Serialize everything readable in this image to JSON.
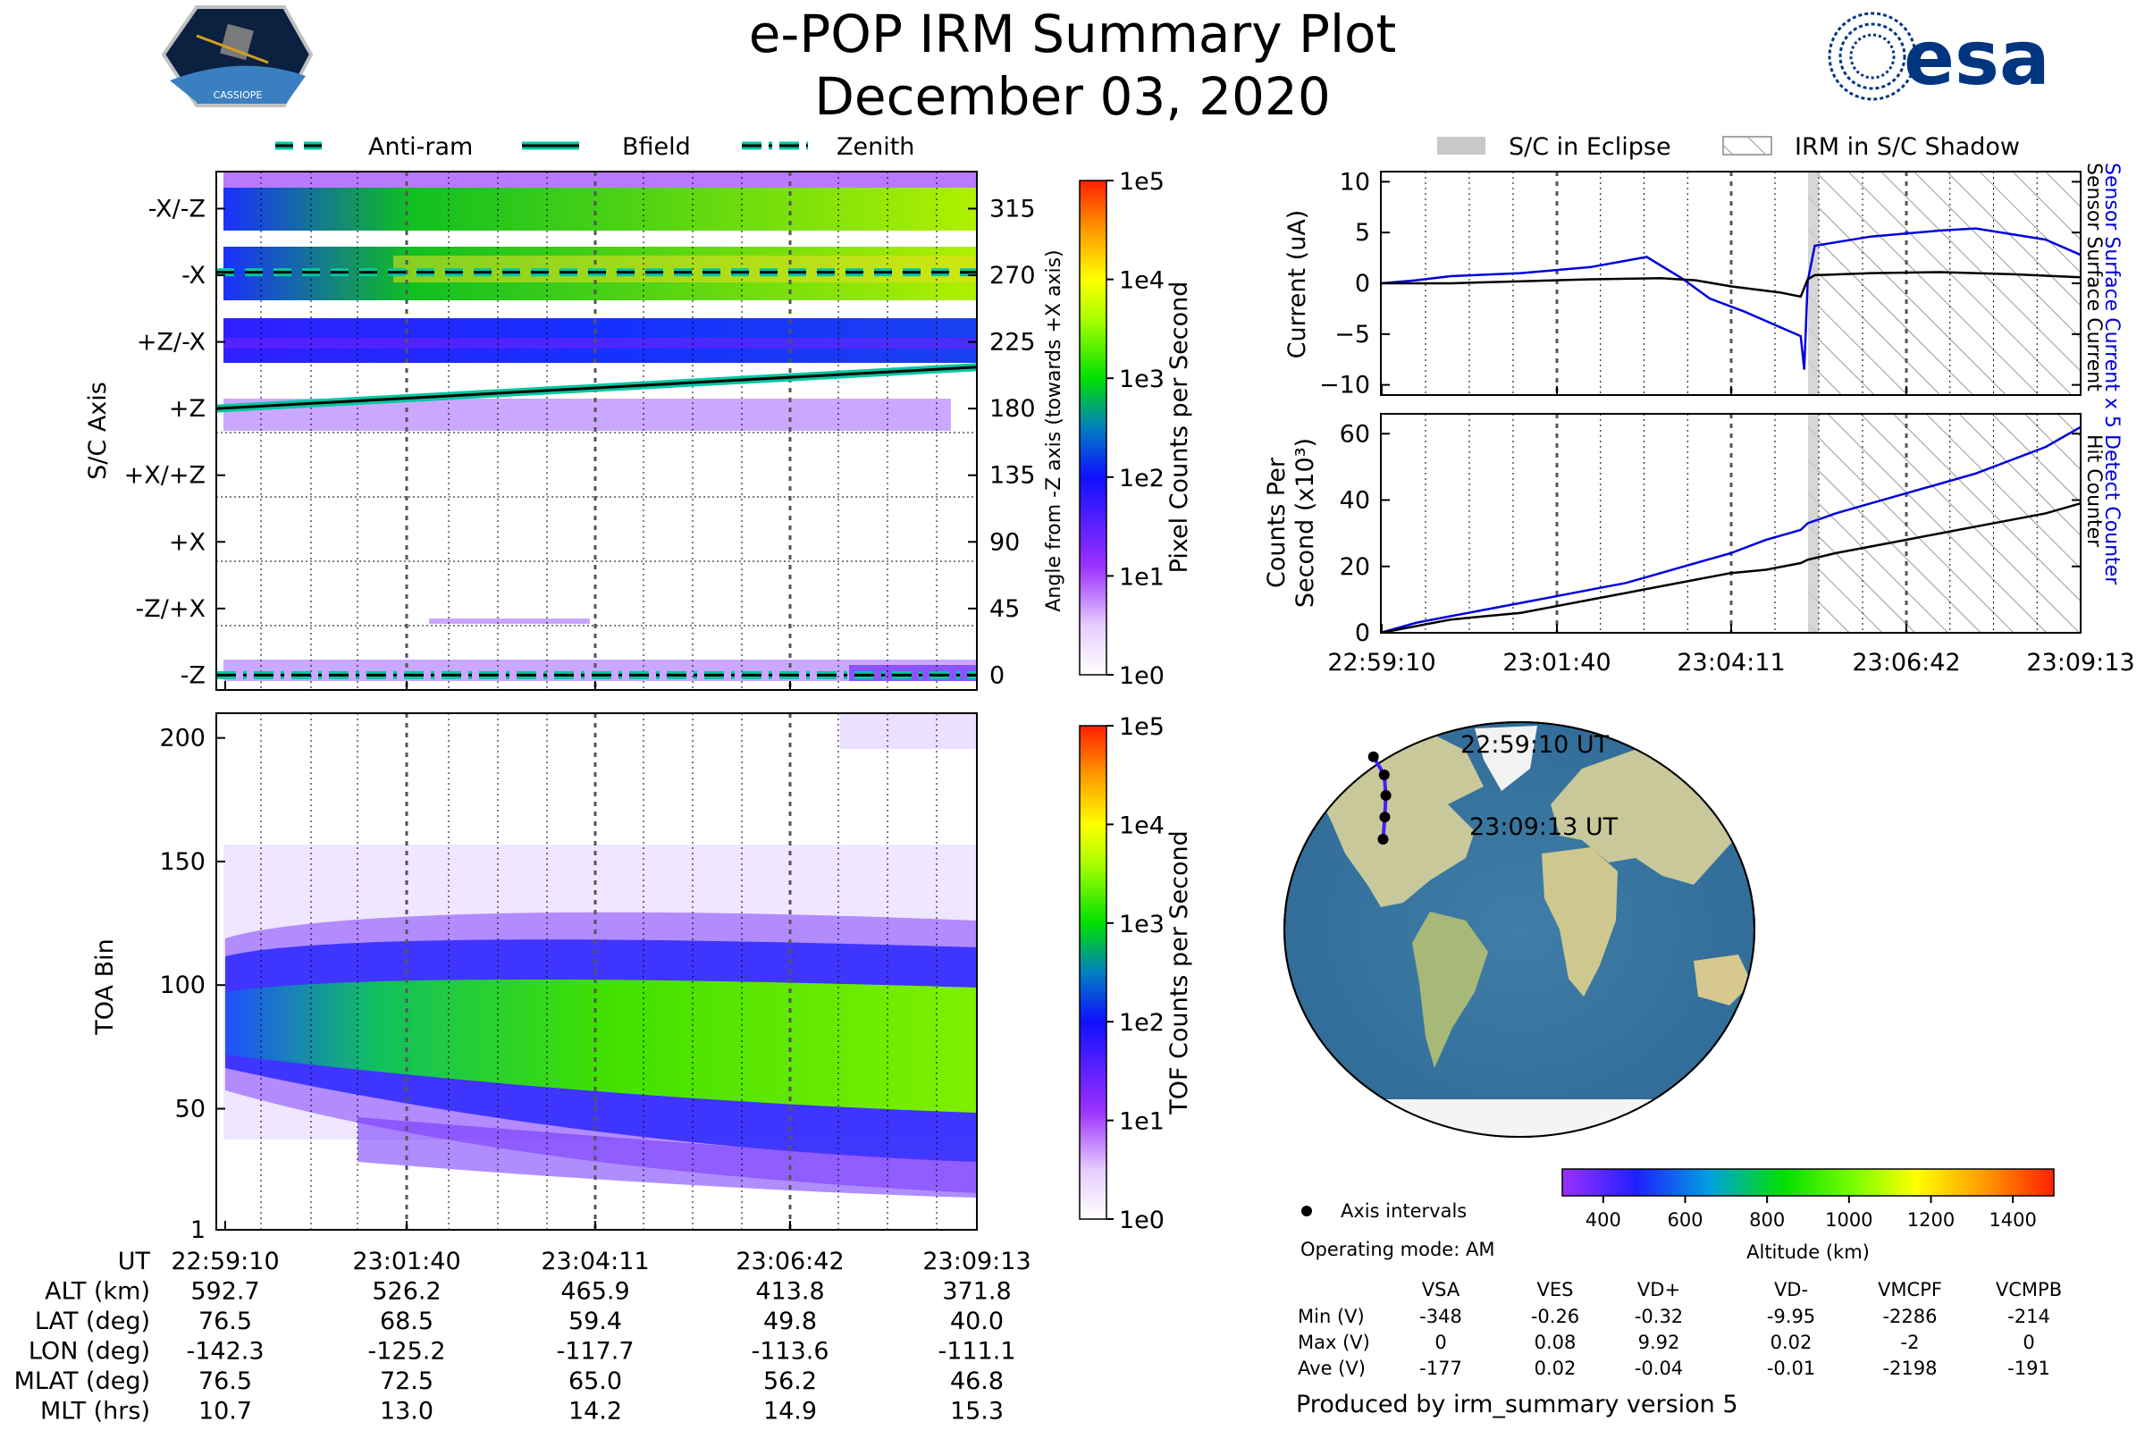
{
  "header": {
    "title": "e-POP IRM Summary Plot",
    "date": "December 03, 2020",
    "left_logo": {
      "icon": "cassiope-mission-patch-icon",
      "text": "CASSIOPE"
    },
    "right_logo": {
      "icon": "esa-logo-icon",
      "text": "esa",
      "color": "#003580"
    }
  },
  "legend_top_left": [
    {
      "label": "Anti-ram",
      "style": "dashed"
    },
    {
      "label": "Bfield",
      "style": "solid"
    },
    {
      "label": "Zenith",
      "style": "dashdot"
    }
  ],
  "legend_top_right": [
    {
      "label": "S/C in Eclipse",
      "style": "gray-fill"
    },
    {
      "label": "IRM in S/C Shadow",
      "style": "hatch"
    }
  ],
  "time_ticks": [
    "22:59:10",
    "23:01:40",
    "23:04:11",
    "23:06:42",
    "23:09:13"
  ],
  "chart_data": [
    {
      "id": "sc-axis-spectrogram",
      "type": "heatmap",
      "ylabel": "S/C Axis",
      "y2label": "Angle from -Z axis (towards +X axis)",
      "ytick_labels": [
        "-X/-Z",
        "-X",
        "+Z/-X",
        "+Z",
        "+X/+Z",
        "+X",
        "-Z/+X",
        "-Z"
      ],
      "angle_ticks": [
        315,
        270,
        225,
        180,
        135,
        90,
        45,
        0
      ],
      "ylim": [
        -10,
        340
      ],
      "colorbar": {
        "label": "Pixel Counts per Second",
        "ticks": [
          "1e0",
          "1e1",
          "1e2",
          "1e3",
          "1e4",
          "1e5"
        ]
      },
      "lines": [
        {
          "name": "Anti-ram",
          "angle_start": 272,
          "angle_end": 272
        },
        {
          "name": "Bfield",
          "angle_start": 180,
          "angle_end": 208
        },
        {
          "name": "Zenith",
          "angle_start": 0,
          "angle_end": 0
        }
      ]
    },
    {
      "id": "toa-spectrogram",
      "type": "heatmap",
      "ylabel": "TOA Bin",
      "ytick_labels": [
        "1",
        "50",
        "100",
        "150",
        "200"
      ],
      "ylim": [
        1,
        210
      ],
      "colorbar": {
        "label": "TOF Counts per Second",
        "ticks": [
          "1e0",
          "1e1",
          "1e2",
          "1e3",
          "1e4",
          "1e5"
        ]
      }
    },
    {
      "id": "current-plot",
      "type": "line",
      "ylabel": "Current (uA)",
      "ytick_labels": [
        "10",
        "5",
        "0",
        "−5",
        "−10"
      ],
      "ylim": [
        -11,
        11
      ],
      "series": [
        {
          "name": "Sensor Surface Current x 5",
          "color": "#0000dd",
          "x": [
            0,
            0.05,
            0.1,
            0.2,
            0.3,
            0.38,
            0.43,
            0.47,
            0.52,
            0.57,
            0.6,
            0.605,
            0.61,
            0.62,
            0.7,
            0.8,
            0.85,
            0.95,
            1.0
          ],
          "y": [
            0.0,
            0.3,
            0.7,
            1.0,
            1.6,
            2.6,
            0.5,
            -1.5,
            -2.8,
            -4.3,
            -5.2,
            -8.5,
            0.2,
            3.7,
            4.6,
            5.2,
            5.4,
            4.3,
            2.8
          ]
        },
        {
          "name": "Sensor Surface Current",
          "color": "#000000",
          "x": [
            0,
            0.1,
            0.2,
            0.3,
            0.4,
            0.45,
            0.5,
            0.57,
            0.6,
            0.61,
            0.62,
            0.7,
            0.8,
            0.9,
            1.0
          ],
          "y": [
            0.0,
            0.0,
            0.2,
            0.4,
            0.5,
            0.3,
            -0.3,
            -0.9,
            -1.3,
            0.4,
            0.8,
            1.0,
            1.1,
            0.9,
            0.6
          ]
        }
      ],
      "right_labels": [
        {
          "text": "Sensor Surface Current x 5",
          "color": "#0000dd"
        },
        {
          "text": "Sensor Surface Current",
          "color": "#000000"
        }
      ]
    },
    {
      "id": "counts-plot",
      "type": "line",
      "ylabel_line1": "Counts Per",
      "ylabel_line2": "Second (x10³)",
      "ytick_labels": [
        "60",
        "40",
        "20",
        "0"
      ],
      "ylim": [
        0,
        66
      ],
      "series": [
        {
          "name": "Detect Counter",
          "color": "#0000dd",
          "x": [
            0,
            0.05,
            0.1,
            0.15,
            0.2,
            0.25,
            0.3,
            0.35,
            0.4,
            0.45,
            0.5,
            0.55,
            0.6,
            0.61,
            0.65,
            0.7,
            0.75,
            0.8,
            0.85,
            0.9,
            0.95,
            1.0
          ],
          "y": [
            0,
            3,
            5,
            7,
            9,
            11,
            13,
            15,
            18,
            21,
            24,
            28,
            31,
            33,
            36,
            39,
            42,
            45,
            48,
            52,
            56,
            62
          ]
        },
        {
          "name": "Hit Counter",
          "color": "#000000",
          "x": [
            0,
            0.05,
            0.1,
            0.15,
            0.2,
            0.25,
            0.3,
            0.35,
            0.4,
            0.45,
            0.5,
            0.55,
            0.6,
            0.61,
            0.65,
            0.7,
            0.75,
            0.8,
            0.85,
            0.9,
            0.95,
            1.0
          ],
          "y": [
            0,
            2,
            4,
            5,
            6,
            8,
            10,
            12,
            14,
            16,
            18,
            19,
            21,
            22,
            24,
            26,
            28,
            30,
            32,
            34,
            36,
            39
          ]
        }
      ],
      "right_labels": [
        {
          "text": "Detect Counter",
          "color": "#0000dd"
        },
        {
          "text": "Hit Counter",
          "color": "#000000"
        }
      ]
    }
  ],
  "map": {
    "start_label": "22:59:10 UT",
    "end_label": "23:09:13 UT",
    "track": [
      {
        "lon": -142.3,
        "lat": 76.5
      },
      {
        "lon": -125.2,
        "lat": 68.5
      },
      {
        "lon": -117.7,
        "lat": 59.4
      },
      {
        "lon": -113.6,
        "lat": 49.8
      },
      {
        "lon": -111.1,
        "lat": 40.0
      }
    ],
    "legend_label": "Axis intervals",
    "altitude_colorbar": {
      "ticks": [
        "400",
        "600",
        "800",
        "1000",
        "1200",
        "1400"
      ],
      "label": "Altitude (km)"
    }
  },
  "operating_mode": "Operating mode: AM",
  "voltage_table": {
    "columns": [
      "VSA",
      "VES",
      "VD+",
      "VD-",
      "VMCPF",
      "VCMPB"
    ],
    "rows": [
      {
        "label": "Min (V)",
        "values": [
          "-348",
          "-0.26",
          "-0.32",
          "-9.95",
          "-2286",
          "-214"
        ]
      },
      {
        "label": "Max (V)",
        "values": [
          "0",
          "0.08",
          "9.92",
          "0.02",
          "-2",
          "0"
        ]
      },
      {
        "label": "Ave (V)",
        "values": [
          "-177",
          "0.02",
          "-0.04",
          "-0.01",
          "-2198",
          "-191"
        ]
      }
    ]
  },
  "ephemeris_table": {
    "rows": [
      {
        "label": "UT",
        "values": [
          "22:59:10",
          "23:01:40",
          "23:04:11",
          "23:06:42",
          "23:09:13"
        ]
      },
      {
        "label": "ALT (km)",
        "values": [
          "592.7",
          "526.2",
          "465.9",
          "413.8",
          "371.8"
        ]
      },
      {
        "label": "LAT (deg)",
        "values": [
          "76.5",
          "68.5",
          "59.4",
          "49.8",
          "40.0"
        ]
      },
      {
        "label": "LON (deg)",
        "values": [
          "-142.3",
          "-125.2",
          "-117.7",
          "-113.6",
          "-111.1"
        ]
      },
      {
        "label": "MLAT (deg)",
        "values": [
          "76.5",
          "72.5",
          "65.0",
          "56.2",
          "46.8"
        ]
      },
      {
        "label": "MLT (hrs)",
        "values": [
          "10.7",
          "13.0",
          "14.2",
          "14.9",
          "15.3"
        ]
      }
    ]
  },
  "footer": "Produced by irm_summary version 5"
}
